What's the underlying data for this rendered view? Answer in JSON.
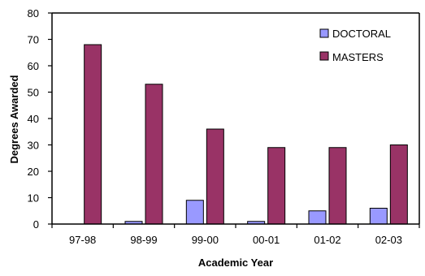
{
  "chart_data": {
    "type": "bar",
    "title": "",
    "xlabel": "Academic Year",
    "ylabel": "Degrees Awarded",
    "categories": [
      "97-98",
      "98-99",
      "99-00",
      "00-01",
      "01-02",
      "02-03"
    ],
    "series": [
      {
        "name": "DOCTORAL",
        "color": "#9999ff",
        "values": [
          0,
          1,
          9,
          1,
          5,
          6
        ]
      },
      {
        "name": "MASTERS",
        "color": "#993366",
        "values": [
          68,
          53,
          36,
          29,
          29,
          30
        ]
      }
    ],
    "ylim": [
      0,
      80
    ],
    "yticks": [
      "0",
      "10",
      "20",
      "30",
      "40",
      "50",
      "60",
      "70",
      "80"
    ],
    "grid": false,
    "legend_position": "top-right"
  }
}
